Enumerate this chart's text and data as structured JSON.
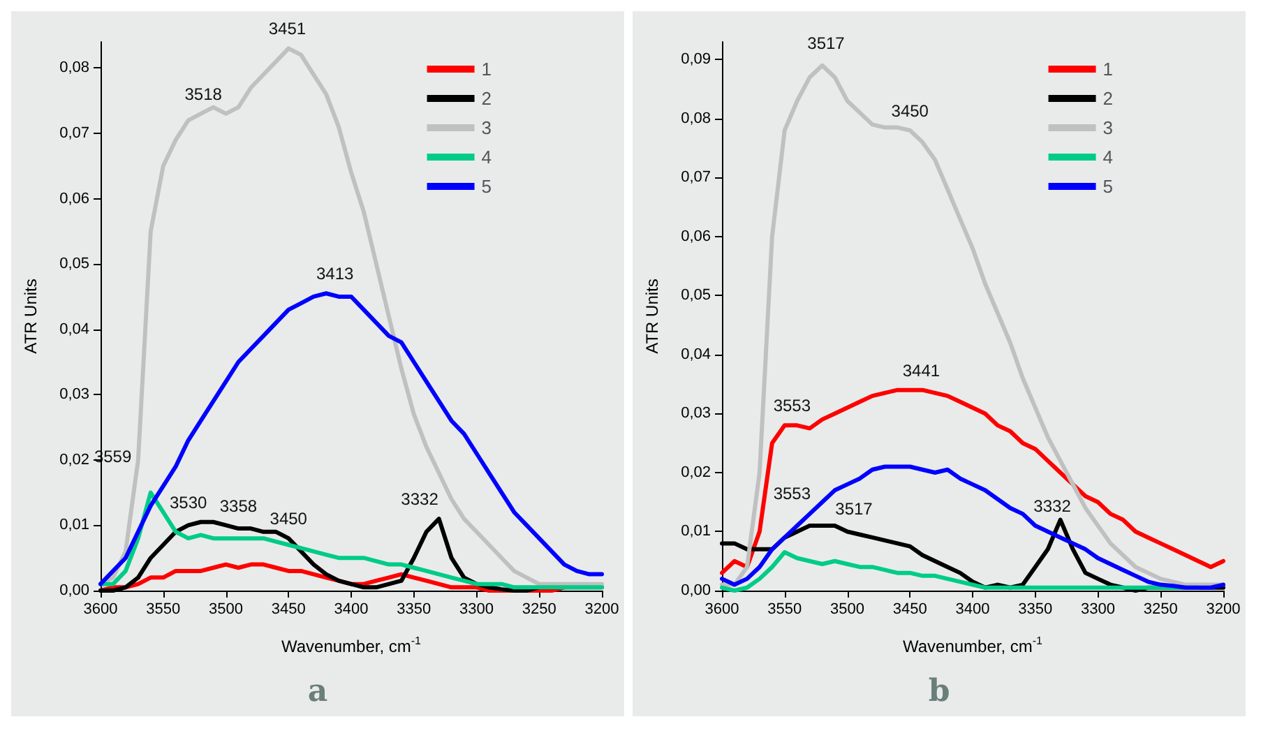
{
  "chart_data": [
    {
      "type": "line",
      "title": "a",
      "xlabel": "Wavenumber, cm$^{-1}$",
      "ylabel": "ATR Units",
      "x": [
        3600,
        3590,
        3580,
        3570,
        3560,
        3550,
        3540,
        3530,
        3520,
        3510,
        3500,
        3490,
        3480,
        3470,
        3460,
        3450,
        3440,
        3430,
        3420,
        3410,
        3400,
        3390,
        3380,
        3370,
        3360,
        3350,
        3340,
        3330,
        3320,
        3310,
        3300,
        3290,
        3280,
        3270,
        3260,
        3250,
        3240,
        3230,
        3220,
        3210,
        3200
      ],
      "xlim": [
        3600,
        3200
      ],
      "xticks": [
        3600,
        3550,
        3500,
        3450,
        3400,
        3350,
        3300,
        3250,
        3200
      ],
      "ylim": [
        0,
        0.084
      ],
      "yticks": [
        {
          "value": 0,
          "label": "0,00"
        },
        {
          "value": 0.01,
          "label": "0,01"
        },
        {
          "value": 0.02,
          "label": "0,02"
        },
        {
          "value": 0.03,
          "label": "0,03"
        },
        {
          "value": 0.04,
          "label": "0,04"
        },
        {
          "value": 0.05,
          "label": "0,05"
        },
        {
          "value": 0.06,
          "label": "0,06"
        },
        {
          "value": 0.07,
          "label": "0,07"
        },
        {
          "value": 0.08,
          "label": "0,08"
        }
      ],
      "grid": false,
      "legend": "top right",
      "marker": "none",
      "line_style": "solid",
      "series": [
        {
          "name": "1",
          "color": "#ff0000",
          "values": [
            0,
            0.0005,
            0.0005,
            0.001,
            0.002,
            0.002,
            0.003,
            0.003,
            0.003,
            0.0035,
            0.004,
            0.0035,
            0.004,
            0.004,
            0.0035,
            0.003,
            0.003,
            0.0025,
            0.002,
            0.0015,
            0.001,
            0.001,
            0.0015,
            0.002,
            0.0025,
            0.002,
            0.0015,
            0.001,
            0.0005,
            0.0005,
            0.0005,
            0,
            0,
            0,
            0,
            0,
            0,
            0.0005,
            null,
            null,
            null
          ]
        },
        {
          "name": "2",
          "color": "#000000",
          "values": [
            0,
            0,
            0.0005,
            0.002,
            0.005,
            0.007,
            0.009,
            0.01,
            0.0105,
            0.0105,
            0.01,
            0.0095,
            0.0095,
            0.009,
            0.009,
            0.008,
            0.006,
            0.004,
            0.0025,
            0.0015,
            0.001,
            0.0005,
            0.0005,
            0.001,
            0.0015,
            0.005,
            0.009,
            0.011,
            0.005,
            0.002,
            0.001,
            0.0005,
            0.0002,
            0,
            0,
            0.0005,
            0.0005,
            0.0005,
            0.0005,
            0.0005,
            0.0005
          ]
        },
        {
          "name": "3",
          "color": "#c0c0c0",
          "values": [
            0.001,
            0.002,
            0.006,
            0.02,
            0.055,
            0.065,
            0.069,
            0.072,
            0.073,
            0.074,
            0.073,
            0.074,
            0.077,
            0.079,
            0.081,
            0.083,
            0.082,
            0.079,
            0.076,
            0.071,
            0.064,
            0.058,
            0.05,
            0.042,
            0.034,
            0.027,
            0.022,
            0.018,
            0.014,
            0.011,
            0.009,
            0.007,
            0.005,
            0.003,
            0.002,
            0.001,
            0.001,
            0.001,
            0.001,
            0.001,
            0.001
          ]
        },
        {
          "name": "4",
          "color": "#00cc88",
          "values": [
            0.001,
            0.001,
            0.003,
            0.008,
            0.015,
            0.012,
            0.009,
            0.008,
            0.0085,
            0.008,
            0.008,
            0.008,
            0.008,
            0.008,
            0.0075,
            0.007,
            0.0065,
            0.006,
            0.0055,
            0.005,
            0.005,
            0.005,
            0.0045,
            0.004,
            0.004,
            0.0035,
            0.003,
            0.0025,
            0.002,
            0.0015,
            0.001,
            0.001,
            0.001,
            0.0005,
            0.0005,
            0.0005,
            0.0005,
            0.0005,
            0.0005,
            0.0005,
            0.0005
          ]
        },
        {
          "name": "5",
          "color": "#0000ff",
          "values": [
            0.001,
            0.003,
            0.005,
            0.009,
            0.013,
            0.016,
            0.019,
            0.023,
            0.026,
            0.029,
            0.032,
            0.035,
            0.037,
            0.039,
            0.041,
            0.043,
            0.044,
            0.045,
            0.0455,
            0.045,
            0.045,
            0.043,
            0.041,
            0.039,
            0.038,
            0.035,
            0.032,
            0.029,
            0.026,
            0.024,
            0.021,
            0.018,
            0.015,
            0.012,
            0.01,
            0.008,
            0.006,
            0.004,
            0.003,
            0.0025,
            0.0025
          ]
        }
      ],
      "annotations": [
        {
          "text": "3451",
          "x": 3451,
          "y": 0.083
        },
        {
          "text": "3518",
          "x": 3518,
          "y": 0.073
        },
        {
          "text": "3413",
          "x": 3413,
          "y": 0.0455
        },
        {
          "text": "3559",
          "x": 3559,
          "y": 0.015
        },
        {
          "text": "3530",
          "x": 3530,
          "y": 0.0105
        },
        {
          "text": "3450",
          "x": 3450,
          "y": 0.008
        },
        {
          "text": "3358",
          "x": 3490,
          "y": 0.004
        },
        {
          "text": "3332",
          "x": 3332,
          "y": 0.011
        }
      ]
    },
    {
      "type": "line",
      "title": "b",
      "xlabel": "Wavenumber, cm$^{-1}$",
      "ylabel": "ATR Units",
      "x": [
        3600,
        3590,
        3580,
        3570,
        3560,
        3550,
        3540,
        3530,
        3520,
        3510,
        3500,
        3490,
        3480,
        3470,
        3460,
        3450,
        3440,
        3430,
        3420,
        3410,
        3400,
        3390,
        3380,
        3370,
        3360,
        3350,
        3340,
        3330,
        3320,
        3310,
        3300,
        3290,
        3280,
        3270,
        3260,
        3250,
        3240,
        3230,
        3220,
        3210,
        3200
      ],
      "xlim": [
        3600,
        3200
      ],
      "xticks": [
        3600,
        3550,
        3500,
        3450,
        3400,
        3350,
        3300,
        3250,
        3200
      ],
      "ylim": [
        0,
        0.093
      ],
      "yticks": [
        {
          "value": 0,
          "label": "0,00"
        },
        {
          "value": 0.01,
          "label": "0,01"
        },
        {
          "value": 0.02,
          "label": "0,02"
        },
        {
          "value": 0.03,
          "label": "0,03"
        },
        {
          "value": 0.04,
          "label": "0,04"
        },
        {
          "value": 0.05,
          "label": "0,05"
        },
        {
          "value": 0.06,
          "label": "0,06"
        },
        {
          "value": 0.07,
          "label": "0,07"
        },
        {
          "value": 0.08,
          "label": "0,08"
        },
        {
          "value": 0.09,
          "label": "0,09"
        }
      ],
      "grid": false,
      "legend": "top right",
      "marker": "none",
      "line_style": "solid",
      "series": [
        {
          "name": "1",
          "color": "#ff0000",
          "values": [
            0.003,
            0.005,
            0.004,
            0.01,
            0.025,
            0.028,
            0.028,
            0.0275,
            0.029,
            0.03,
            0.031,
            0.032,
            0.033,
            0.0335,
            0.034,
            0.034,
            0.034,
            0.0335,
            0.033,
            0.032,
            0.031,
            0.03,
            0.028,
            0.027,
            0.025,
            0.024,
            0.022,
            0.02,
            0.018,
            0.016,
            0.015,
            0.013,
            0.012,
            0.01,
            0.009,
            0.008,
            0.007,
            0.006,
            0.005,
            0.004,
            0.005
          ]
        },
        {
          "name": "2",
          "color": "#000000",
          "values": [
            0.008,
            0.008,
            0.007,
            0.007,
            0.007,
            0.009,
            0.01,
            0.011,
            0.011,
            0.011,
            0.01,
            0.0095,
            0.009,
            0.0085,
            0.008,
            0.0075,
            0.006,
            0.005,
            0.004,
            0.003,
            0.0015,
            0.0005,
            0.001,
            0.0005,
            0.001,
            0.004,
            0.007,
            0.012,
            0.007,
            0.003,
            0.002,
            0.001,
            0.0005,
            0,
            0.0005,
            0.0005,
            0.0005,
            0.0005,
            0.0005,
            0.0005,
            0.0005
          ]
        },
        {
          "name": "3",
          "color": "#c0c0c0",
          "values": [
            0.001,
            0.001,
            0.004,
            0.02,
            0.06,
            0.078,
            0.083,
            0.087,
            0.089,
            0.087,
            0.083,
            0.081,
            0.079,
            0.0785,
            0.0785,
            0.078,
            0.076,
            0.073,
            0.068,
            0.063,
            0.058,
            0.052,
            0.047,
            0.042,
            0.036,
            0.031,
            0.026,
            0.022,
            0.018,
            0.014,
            0.011,
            0.008,
            0.006,
            0.004,
            0.003,
            0.002,
            0.0015,
            0.001,
            0.001,
            0.001,
            0.001
          ]
        },
        {
          "name": "4",
          "color": "#00cc88",
          "values": [
            0.0005,
            0,
            0.0005,
            0.002,
            0.004,
            0.0065,
            0.0055,
            0.005,
            0.0045,
            0.005,
            0.0045,
            0.004,
            0.004,
            0.0035,
            0.003,
            0.003,
            0.0025,
            0.0025,
            0.002,
            0.0015,
            0.001,
            0.0005,
            0.0005,
            0.0005,
            0.0005,
            0.0005,
            0.0005,
            0.0005,
            0.0005,
            0.0005,
            0.0005,
            0.0005,
            0.0005,
            0.0005,
            0.0005,
            0.0005,
            0.0005,
            0.0005,
            0.0005,
            null,
            null
          ]
        },
        {
          "name": "5",
          "color": "#0000ff",
          "values": [
            0.002,
            0.001,
            0.002,
            0.004,
            0.007,
            0.009,
            0.011,
            0.013,
            0.015,
            0.017,
            0.018,
            0.019,
            0.0205,
            0.021,
            0.021,
            0.021,
            0.0205,
            0.02,
            0.0205,
            0.019,
            0.018,
            0.017,
            0.0155,
            0.014,
            0.013,
            0.011,
            0.01,
            0.009,
            0.008,
            0.007,
            0.0055,
            0.0045,
            0.0035,
            0.0025,
            0.0015,
            0.001,
            0.0008,
            0.0005,
            0.0005,
            0.0005,
            0.001
          ]
        }
      ],
      "annotations": [
        {
          "text": "3517",
          "x": 3517,
          "y": 0.0895
        },
        {
          "text": "3450",
          "x": 3450,
          "y": 0.078
        },
        {
          "text": "3441",
          "x": 3441,
          "y": 0.034
        },
        {
          "text": "3553",
          "x": 3553,
          "y": 0.028
        },
        {
          "text": "3517",
          "x": 3517,
          "y": 0.0115
        },
        {
          "text": "3553",
          "x": 3553,
          "y": 0.0065
        },
        {
          "text": "3332",
          "x": 3332,
          "y": 0.012
        }
      ]
    }
  ]
}
